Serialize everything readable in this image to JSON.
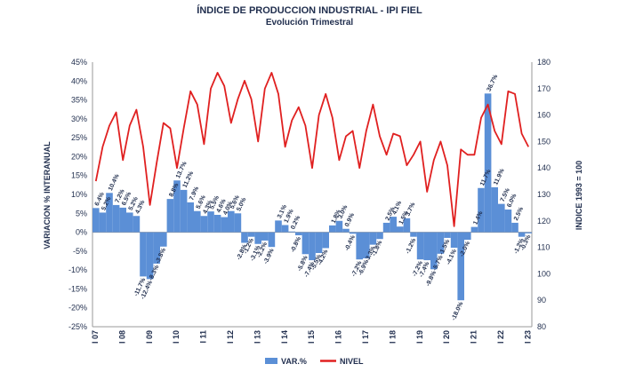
{
  "chart_data": {
    "type": "bar+line",
    "title": "ÍNDICE DE PRODUCCION INDUSTRIAL - IPI FIEL",
    "subtitle": "Evolución Trimestral",
    "ylabel": "VARIACION % INTERANUAL",
    "y2label": "INDICE 1993 = 100",
    "ylim": [
      -25,
      45
    ],
    "y_ticks": [
      "-25%",
      "-20%",
      "-15%",
      "-10%",
      "-5%",
      "0%",
      "5%",
      "10%",
      "15%",
      "20%",
      "25%",
      "30%",
      "35%",
      "40%",
      "45%"
    ],
    "y2lim": [
      80,
      180
    ],
    "y2_ticks": [
      "80",
      "90",
      "100",
      "110",
      "120",
      "130",
      "140",
      "150",
      "160",
      "170",
      "180"
    ],
    "x_labels": [
      "I 07",
      "I 08",
      "I 09",
      "I 10",
      "I 11",
      "I 12",
      "I 13",
      "I 14",
      "I 15",
      "I 16",
      "I 17",
      "I 18",
      "I 19",
      "I 20",
      "I 21",
      "I 22",
      "I 23"
    ],
    "legend": [
      "VAR.%",
      "NIVEL"
    ],
    "legend_position": "bottom",
    "colors": {
      "bars": "#5b8fd6",
      "line": "#e02020",
      "text": "#1f2d4d"
    },
    "series": [
      {
        "name": "VAR.%",
        "type": "bar",
        "values": [
          6.4,
          5.2,
          10.4,
          7.2,
          6.5,
          5.2,
          4.3,
          -11.7,
          -12.4,
          -8.3,
          -3.8,
          8.8,
          13.7,
          11.2,
          7.9,
          5.6,
          4.3,
          5.5,
          4.6,
          4.0,
          5.6,
          5.0,
          -2.8,
          -1.2,
          -3.1,
          -2.2,
          -3.9,
          3.1,
          1.9,
          0.2,
          -0.8,
          -5.8,
          -7.4,
          -5.5,
          -4.2,
          1.8,
          3.0,
          0.9,
          -0.4,
          -7.2,
          -6.9,
          -3.3,
          -1.8,
          2.5,
          4.1,
          1.5,
          3.7,
          -1.2,
          -7.2,
          -7.4,
          -9.8,
          -5.7,
          -1.5,
          -4.1,
          -18.0,
          -2.0,
          1.4,
          11.7,
          36.7,
          11.9,
          7.5,
          6.0,
          2.5,
          -1.2,
          -0.3
        ],
        "labels": [
          "6.4%",
          "5.2%",
          "10.4%",
          "7.2%",
          "6.5%",
          "5.2%",
          "4.3%",
          "-11.7%",
          "-12.4%",
          "-8.3%",
          "-3.8%",
          "8.8%",
          "13.7%",
          "11.2%",
          "7.9%",
          "5.6%",
          "4.3%",
          "5.5%",
          "4.6%",
          "4.0%",
          "5.6%",
          "5.0%",
          "-2.8%",
          "-1.2%",
          "-3.1%",
          "-2.2%",
          "-3.9%",
          "3.1%",
          "1.9%",
          "0.2%",
          "-0.8%",
          "-5.8%",
          "-7.4%",
          "-5.5%",
          "-4.2%",
          "1.8%",
          "3.0%",
          "0.9%",
          "-0.4%",
          "-7.2%",
          "-6.9%",
          "-3.3%",
          "-1.8%",
          "2.5%",
          "4.1%",
          "1.5%",
          "3.7%",
          "-1.2%",
          "-7.2%",
          "-7.4%",
          "-9.8%",
          "-5.7%",
          "-1.5%",
          "-4.1%",
          "-18.0%",
          "-2.0%",
          "1.4%",
          "11.7%",
          "36.7%",
          "11.9%",
          "7.5%",
          "6.0%",
          "2.5%",
          "-1.2%",
          "-0.3%"
        ]
      },
      {
        "name": "NIVEL",
        "type": "line",
        "axis": "right",
        "values": [
          135,
          148,
          156,
          161,
          143,
          156,
          162,
          148,
          126,
          142,
          157,
          155,
          140,
          155,
          169,
          164,
          149,
          170,
          176,
          171,
          157,
          166,
          173,
          166,
          150,
          170,
          176,
          168,
          148,
          158,
          163,
          156,
          140,
          160,
          168,
          159,
          143,
          152,
          154,
          140,
          154,
          164,
          152,
          145,
          153,
          152,
          141,
          145,
          150,
          131,
          143,
          150,
          141,
          118,
          147,
          145,
          145,
          159,
          164,
          154,
          149,
          169,
          168,
          153,
          148
        ]
      }
    ]
  }
}
